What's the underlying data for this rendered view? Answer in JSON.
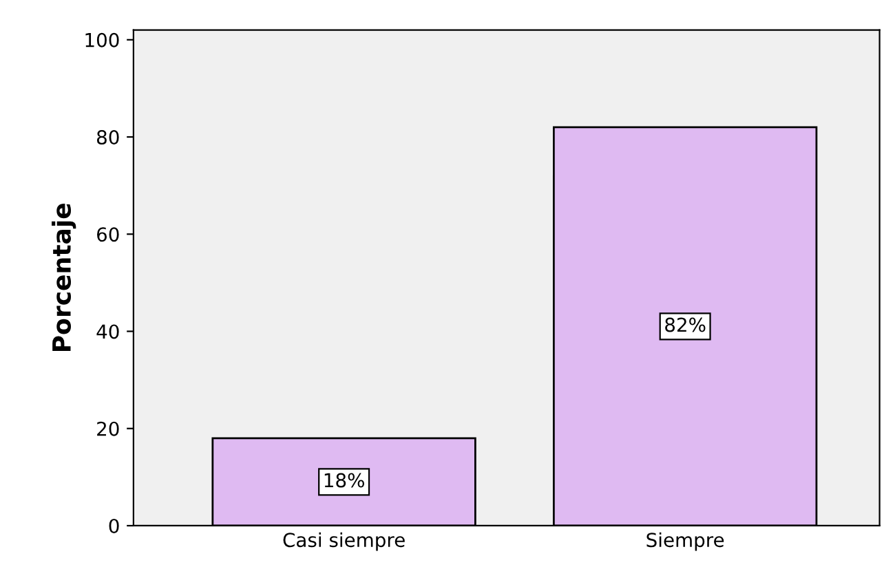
{
  "chart_data": {
    "type": "bar",
    "ylabel": "Porcentaje",
    "categories": [
      "Casi siempre",
      "Siempre"
    ],
    "values": [
      18,
      82
    ],
    "value_labels": [
      "18%",
      "82%"
    ],
    "color": "#dfbaf2",
    "ylim": [
      0,
      102
    ],
    "yticks": [
      0,
      20,
      40,
      60,
      80,
      100
    ],
    "grid": false,
    "legend": false
  }
}
